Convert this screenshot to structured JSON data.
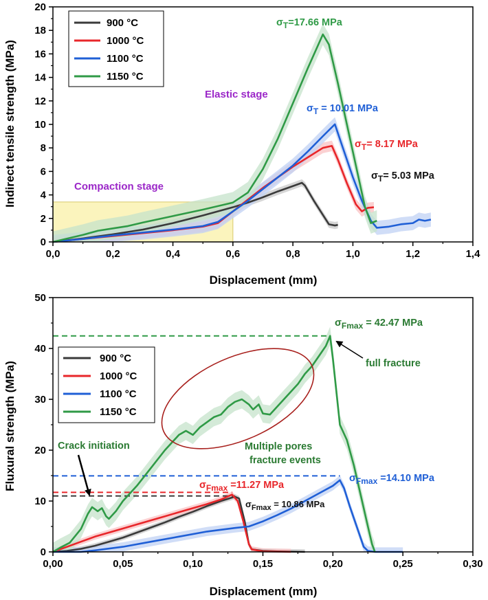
{
  "colors": {
    "900": "#3a3a3a",
    "1000": "#e8262a",
    "1100": "#1f5fd6",
    "1150": "#2f9a46",
    "stage_text": "#9b27c8",
    "compaction_fill": "#fbf4bd",
    "compaction_stroke": "#d8c86a",
    "ellipse": "#a8201d",
    "annot_green": "#2a7a32"
  },
  "chart_data": [
    {
      "type": "line",
      "title": "",
      "xlabel": "Displacement (mm)",
      "ylabel": "Indirect tensile strength (MPa)",
      "xlim": [
        0,
        1.4
      ],
      "ylim": [
        0,
        20
      ],
      "x_ticks": [
        0,
        0.2,
        0.4,
        0.6,
        0.8,
        1.0,
        1.2,
        1.4
      ],
      "x_tick_labels": [
        "0,0",
        "0,2",
        "0,4",
        "0,6",
        "0,8",
        "1,0",
        "1,2",
        "1,4"
      ],
      "y_ticks": [
        0,
        2,
        4,
        6,
        8,
        10,
        12,
        14,
        16,
        18,
        20
      ],
      "y_tick_labels": [
        "0",
        "2",
        "4",
        "6",
        "8",
        "10",
        "12",
        "14",
        "16",
        "18",
        "20"
      ],
      "legend": [
        "900 °C",
        "1000 °C",
        "1100 °C",
        "1150 °C"
      ],
      "legend_position": "top-left",
      "series": [
        {
          "name": "900 °C",
          "color_key": "900",
          "band": 0.3,
          "points": [
            [
              0,
              0
            ],
            [
              0.1,
              0.3
            ],
            [
              0.2,
              0.65
            ],
            [
              0.3,
              1.05
            ],
            [
              0.4,
              1.6
            ],
            [
              0.5,
              2.25
            ],
            [
              0.6,
              2.95
            ],
            [
              0.65,
              3.35
            ],
            [
              0.7,
              3.8
            ],
            [
              0.75,
              4.3
            ],
            [
              0.8,
              4.75
            ],
            [
              0.83,
              5.03
            ],
            [
              0.84,
              4.8
            ],
            [
              0.87,
              3.5
            ],
            [
              0.9,
              2.3
            ],
            [
              0.92,
              1.5
            ],
            [
              0.94,
              1.4
            ],
            [
              0.95,
              1.45
            ]
          ]
        },
        {
          "name": "1000 °C",
          "color_key": "1000",
          "band": 0.45,
          "points": [
            [
              0,
              0
            ],
            [
              0.1,
              0.25
            ],
            [
              0.2,
              0.5
            ],
            [
              0.3,
              0.75
            ],
            [
              0.4,
              1.0
            ],
            [
              0.5,
              1.3
            ],
            [
              0.55,
              1.6
            ],
            [
              0.6,
              2.6
            ],
            [
              0.65,
              3.6
            ],
            [
              0.7,
              4.6
            ],
            [
              0.75,
              5.5
            ],
            [
              0.8,
              6.4
            ],
            [
              0.85,
              7.2
            ],
            [
              0.9,
              8.0
            ],
            [
              0.93,
              8.17
            ],
            [
              0.95,
              7.0
            ],
            [
              0.98,
              5.0
            ],
            [
              1.01,
              3.2
            ],
            [
              1.03,
              2.6
            ],
            [
              1.05,
              2.9
            ],
            [
              1.07,
              2.95
            ]
          ]
        },
        {
          "name": "1100 °C",
          "color_key": "1100",
          "band": 0.6,
          "points": [
            [
              0,
              0
            ],
            [
              0.1,
              0.25
            ],
            [
              0.2,
              0.55
            ],
            [
              0.3,
              0.8
            ],
            [
              0.4,
              1.05
            ],
            [
              0.5,
              1.35
            ],
            [
              0.55,
              1.7
            ],
            [
              0.6,
              2.6
            ],
            [
              0.65,
              3.5
            ],
            [
              0.7,
              4.5
            ],
            [
              0.75,
              5.5
            ],
            [
              0.8,
              6.5
            ],
            [
              0.85,
              7.7
            ],
            [
              0.9,
              9.0
            ],
            [
              0.94,
              10.01
            ],
            [
              0.96,
              8.5
            ],
            [
              1.0,
              5.5
            ],
            [
              1.03,
              3.5
            ],
            [
              1.06,
              1.8
            ],
            [
              1.08,
              1.2
            ],
            [
              1.12,
              1.3
            ],
            [
              1.16,
              1.5
            ],
            [
              1.2,
              1.6
            ],
            [
              1.22,
              1.9
            ],
            [
              1.24,
              1.8
            ],
            [
              1.26,
              1.9
            ]
          ]
        },
        {
          "name": "1150 °C",
          "color_key": "1150",
          "band": 0.9,
          "points": [
            [
              0,
              0
            ],
            [
              0.05,
              0.3
            ],
            [
              0.1,
              0.6
            ],
            [
              0.15,
              0.95
            ],
            [
              0.2,
              1.15
            ],
            [
              0.25,
              1.35
            ],
            [
              0.3,
              1.65
            ],
            [
              0.4,
              2.2
            ],
            [
              0.5,
              2.75
            ],
            [
              0.6,
              3.35
            ],
            [
              0.65,
              4.2
            ],
            [
              0.7,
              6.2
            ],
            [
              0.75,
              8.8
            ],
            [
              0.8,
              11.8
            ],
            [
              0.85,
              14.8
            ],
            [
              0.9,
              17.66
            ],
            [
              0.92,
              16.8
            ],
            [
              0.95,
              13.5
            ],
            [
              0.98,
              10.0
            ],
            [
              1.01,
              6.5
            ],
            [
              1.04,
              3.0
            ],
            [
              1.06,
              1.6
            ],
            [
              1.08,
              1.8
            ]
          ]
        }
      ],
      "annotations": [
        {
          "text": "Compaction stage",
          "color_key": "stage_text"
        },
        {
          "text": "Elastic stage",
          "color_key": "stage_text"
        }
      ],
      "compaction_region": {
        "x": [
          0,
          0.6
        ],
        "y": [
          0,
          3.4
        ]
      },
      "peak_labels": [
        {
          "sigma": "σ",
          "sub": "T",
          "value": "=17.66 MPa",
          "color_key": "1150"
        },
        {
          "sigma": "σ",
          "sub": "T",
          "value": " = 10.01 MPa",
          "color_key": "1100"
        },
        {
          "sigma": "σ",
          "sub": "T",
          "value": "= 8.17 MPa",
          "color_key": "1000"
        },
        {
          "sigma": "σ",
          "sub": "T",
          "value": "= 5.03 MPa",
          "color_key": "900"
        }
      ]
    },
    {
      "type": "line",
      "title": "",
      "xlabel": "Displacement (mm)",
      "ylabel": "Fluxural strength (MPa)",
      "xlim": [
        0,
        0.3
      ],
      "ylim": [
        0,
        50
      ],
      "x_ticks": [
        0,
        0.05,
        0.1,
        0.15,
        0.2,
        0.25,
        0.3
      ],
      "x_tick_labels": [
        "0,00",
        "0,05",
        "0,10",
        "0,15",
        "0,20",
        "0,25",
        "0,30"
      ],
      "y_ticks": [
        0,
        10,
        20,
        30,
        40,
        50
      ],
      "y_tick_labels": [
        "0",
        "10",
        "20",
        "30",
        "40",
        "50"
      ],
      "legend": [
        "900 °C",
        "1000 °C",
        "1100 °C",
        "1150 °C"
      ],
      "legend_position": "top-left",
      "series": [
        {
          "name": "900 °C",
          "color_key": "900",
          "band": 0.5,
          "points": [
            [
              0,
              0
            ],
            [
              0.01,
              0.2
            ],
            [
              0.02,
              0.6
            ],
            [
              0.03,
              1.2
            ],
            [
              0.04,
              2.0
            ],
            [
              0.05,
              2.8
            ],
            [
              0.06,
              3.8
            ],
            [
              0.07,
              4.8
            ],
            [
              0.08,
              5.8
            ],
            [
              0.09,
              6.9
            ],
            [
              0.1,
              7.9
            ],
            [
              0.11,
              9.0
            ],
            [
              0.12,
              10.0
            ],
            [
              0.13,
              10.86
            ],
            [
              0.133,
              10.5
            ],
            [
              0.137,
              6.0
            ],
            [
              0.14,
              1.5
            ],
            [
              0.142,
              0.5
            ],
            [
              0.15,
              0.2
            ],
            [
              0.16,
              0.1
            ],
            [
              0.18,
              0
            ]
          ]
        },
        {
          "name": "1000 °C",
          "color_key": "1000",
          "band": 0.6,
          "points": [
            [
              0,
              0
            ],
            [
              0.01,
              1.0
            ],
            [
              0.02,
              2.0
            ],
            [
              0.03,
              3.0
            ],
            [
              0.04,
              3.8
            ],
            [
              0.05,
              4.6
            ],
            [
              0.06,
              5.4
            ],
            [
              0.07,
              6.2
            ],
            [
              0.08,
              7.0
            ],
            [
              0.09,
              7.8
            ],
            [
              0.1,
              8.6
            ],
            [
              0.11,
              9.4
            ],
            [
              0.12,
              10.3
            ],
            [
              0.128,
              11.27
            ],
            [
              0.132,
              10.0
            ],
            [
              0.136,
              6.0
            ],
            [
              0.14,
              1.5
            ],
            [
              0.142,
              0.5
            ],
            [
              0.15,
              0.1
            ],
            [
              0.17,
              0
            ]
          ]
        },
        {
          "name": "1100 °C",
          "color_key": "1100",
          "band": 0.9,
          "points": [
            [
              0,
              0
            ],
            [
              0.02,
              0
            ],
            [
              0.03,
              0.3
            ],
            [
              0.05,
              1.0
            ],
            [
              0.07,
              2.0
            ],
            [
              0.09,
              3.0
            ],
            [
              0.11,
              4.0
            ],
            [
              0.13,
              4.7
            ],
            [
              0.14,
              5.0
            ],
            [
              0.15,
              6.0
            ],
            [
              0.16,
              7.2
            ],
            [
              0.17,
              8.5
            ],
            [
              0.18,
              10.0
            ],
            [
              0.19,
              11.5
            ],
            [
              0.2,
              13.0
            ],
            [
              0.205,
              14.1
            ],
            [
              0.208,
              12.5
            ],
            [
              0.212,
              9.0
            ],
            [
              0.217,
              5.0
            ],
            [
              0.222,
              1.0
            ],
            [
              0.225,
              0.2
            ],
            [
              0.23,
              0
            ],
            [
              0.25,
              0
            ]
          ]
        },
        {
          "name": "1150 °C",
          "color_key": "1150",
          "band": 1.8,
          "points": [
            [
              0,
              0
            ],
            [
              0.005,
              0.8
            ],
            [
              0.012,
              1.8
            ],
            [
              0.02,
              4.5
            ],
            [
              0.025,
              7.5
            ],
            [
              0.028,
              8.8
            ],
            [
              0.032,
              8.0
            ],
            [
              0.035,
              8.6
            ],
            [
              0.038,
              7.0
            ],
            [
              0.04,
              6.5
            ],
            [
              0.045,
              8.0
            ],
            [
              0.05,
              10.0
            ],
            [
              0.06,
              13.0
            ],
            [
              0.07,
              16.5
            ],
            [
              0.08,
              20.0
            ],
            [
              0.085,
              21.5
            ],
            [
              0.09,
              23.0
            ],
            [
              0.095,
              23.8
            ],
            [
              0.1,
              23.0
            ],
            [
              0.105,
              24.5
            ],
            [
              0.11,
              25.5
            ],
            [
              0.115,
              26.5
            ],
            [
              0.12,
              27.0
            ],
            [
              0.125,
              28.5
            ],
            [
              0.13,
              29.5
            ],
            [
              0.135,
              30.0
            ],
            [
              0.14,
              29.0
            ],
            [
              0.143,
              28.0
            ],
            [
              0.147,
              29.0
            ],
            [
              0.15,
              27.2
            ],
            [
              0.155,
              27.0
            ],
            [
              0.16,
              28.5
            ],
            [
              0.165,
              30.0
            ],
            [
              0.17,
              31.5
            ],
            [
              0.175,
              33.0
            ],
            [
              0.18,
              35.0
            ],
            [
              0.185,
              36.5
            ],
            [
              0.19,
              38.5
            ],
            [
              0.195,
              40.5
            ],
            [
              0.198,
              42.47
            ],
            [
              0.2,
              38.0
            ],
            [
              0.205,
              25.0
            ],
            [
              0.21,
              22.0
            ],
            [
              0.215,
              17.0
            ],
            [
              0.22,
              11.0
            ],
            [
              0.225,
              5.0
            ],
            [
              0.228,
              1.5
            ],
            [
              0.23,
              0
            ]
          ]
        }
      ],
      "reference_lines": [
        {
          "y": 42.47,
          "x_end": 0.198,
          "color_key": "1150"
        },
        {
          "y": 14.95,
          "x_end": 0.205,
          "color_key": "1100"
        },
        {
          "y": 11.7,
          "x_end": 0.128,
          "color_key": "1000"
        },
        {
          "y": 11.0,
          "x_end": 0.13,
          "color_key": "900"
        }
      ],
      "peak_labels": [
        {
          "sigma": "σ",
          "sub": "Fmax",
          "value": " = 42.47 MPa",
          "color_key": "1150"
        },
        {
          "sigma": "σ",
          "sub": "Fmax",
          "value": " =14.10 MPa",
          "color_key": "1100"
        },
        {
          "sigma": "σ",
          "sub": "Fmax",
          "value": " =11.27 MPa",
          "color_key": "1000"
        },
        {
          "sigma": "σ",
          "sub": "Fmax",
          "value": " = 10.86 MPa",
          "color_key": "900"
        }
      ],
      "annotations": [
        {
          "text": "full fracture",
          "color_key": "annot_green"
        },
        {
          "text": "Crack initiation",
          "color_key": "annot_green"
        },
        {
          "text": "Multiple pores",
          "color_key": "annot_green"
        },
        {
          "text": "fracture events",
          "color_key": "annot_green"
        }
      ]
    }
  ]
}
